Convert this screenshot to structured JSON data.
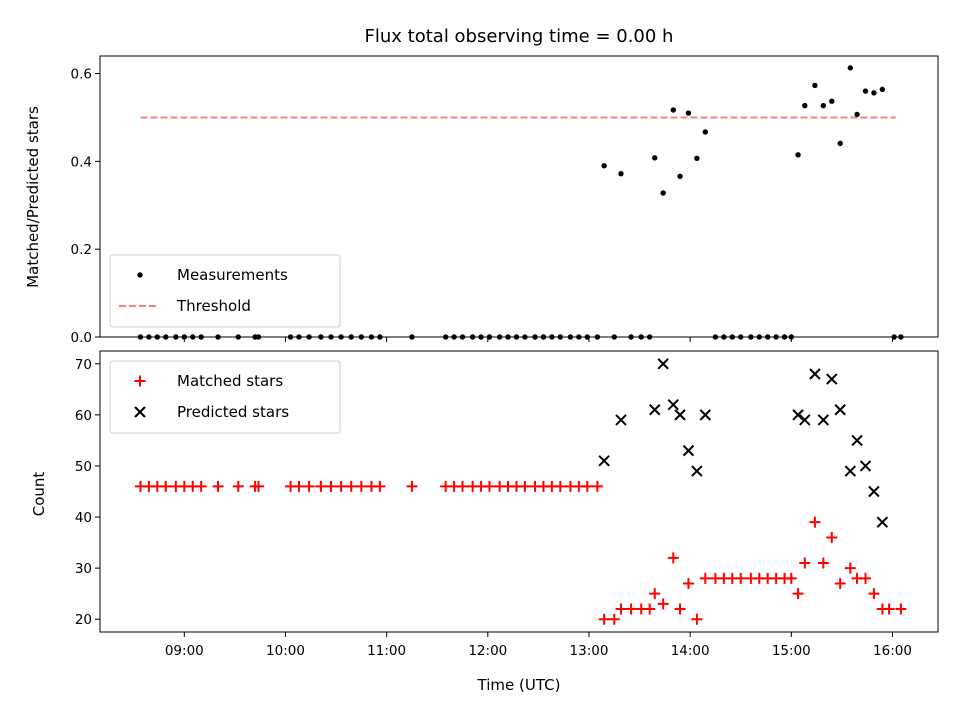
{
  "chart_data": {
    "title": "Flux total observing time = 0.00 h",
    "xlabel": "Time (UTC)",
    "x_ticks": [
      "09:00",
      "10:00",
      "11:00",
      "12:00",
      "13:00",
      "14:00",
      "15:00",
      "16:00"
    ],
    "xlim": [
      "08:10",
      "16:27"
    ],
    "grid": false,
    "panels": [
      {
        "type": "scatter",
        "ylabel": "Matched/Predicted stars",
        "ylim": [
          0,
          0.64
        ],
        "y_ticks": [
          "0.0",
          "0.2",
          "0.4",
          "0.6"
        ],
        "legend_position": "lower-left",
        "threshold": {
          "name": "Threshold",
          "y": 0.5,
          "x_start": "08:34",
          "x_end": "16:02",
          "color": "#ff7f7f",
          "style": "dashed"
        },
        "series": [
          {
            "name": "Measurements",
            "color": "#000000",
            "marker": "dot",
            "points": [
              [
                "08:34",
                0
              ],
              [
                "08:39",
                0
              ],
              [
                "08:44",
                0
              ],
              [
                "08:49",
                0
              ],
              [
                "08:55",
                0
              ],
              [
                "09:00",
                0
              ],
              [
                "09:05",
                0
              ],
              [
                "09:10",
                0
              ],
              [
                "09:20",
                0
              ],
              [
                "09:32",
                0
              ],
              [
                "09:42",
                0
              ],
              [
                "09:44",
                0
              ],
              [
                "10:03",
                0
              ],
              [
                "10:08",
                0
              ],
              [
                "10:14",
                0
              ],
              [
                "10:21",
                0
              ],
              [
                "10:27",
                0
              ],
              [
                "10:33",
                0
              ],
              [
                "10:39",
                0
              ],
              [
                "10:45",
                0
              ],
              [
                "10:51",
                0
              ],
              [
                "10:56",
                0
              ],
              [
                "11:15",
                0
              ],
              [
                "11:35",
                0
              ],
              [
                "11:40",
                0
              ],
              [
                "11:45",
                0
              ],
              [
                "11:51",
                0
              ],
              [
                "11:56",
                0
              ],
              [
                "12:01",
                0
              ],
              [
                "12:07",
                0
              ],
              [
                "12:12",
                0
              ],
              [
                "12:17",
                0
              ],
              [
                "12:22",
                0
              ],
              [
                "12:28",
                0
              ],
              [
                "12:33",
                0
              ],
              [
                "12:38",
                0
              ],
              [
                "12:43",
                0
              ],
              [
                "12:49",
                0
              ],
              [
                "12:54",
                0
              ],
              [
                "12:59",
                0
              ],
              [
                "13:05",
                0
              ],
              [
                "13:09",
                0.39
              ],
              [
                "13:15",
                0
              ],
              [
                "13:19",
                0.372
              ],
              [
                "13:25",
                0
              ],
              [
                "13:31",
                0
              ],
              [
                "13:36",
                0
              ],
              [
                "13:39",
                0.408
              ],
              [
                "13:44",
                0.328
              ],
              [
                "13:50",
                0.517
              ],
              [
                "13:54",
                0.366
              ],
              [
                "13:59",
                0.51
              ],
              [
                "14:04",
                0.407
              ],
              [
                "14:09",
                0.467
              ],
              [
                "14:15",
                0
              ],
              [
                "14:20",
                0
              ],
              [
                "14:25",
                0
              ],
              [
                "14:30",
                0
              ],
              [
                "14:36",
                0
              ],
              [
                "14:41",
                0
              ],
              [
                "14:46",
                0
              ],
              [
                "14:51",
                0
              ],
              [
                "14:56",
                0
              ],
              [
                "15:00",
                0
              ],
              [
                "15:04",
                0.415
              ],
              [
                "15:08",
                0.527
              ],
              [
                "15:14",
                0.573
              ],
              [
                "15:19",
                0.527
              ],
              [
                "15:24",
                0.537
              ],
              [
                "15:29",
                0.441
              ],
              [
                "15:35",
                0.613
              ],
              [
                "15:39",
                0.507
              ],
              [
                "15:44",
                0.56
              ],
              [
                "15:49",
                0.556
              ],
              [
                "15:54",
                0.564
              ],
              [
                "16:01",
                0
              ],
              [
                "16:05",
                0
              ]
            ]
          }
        ]
      },
      {
        "type": "scatter",
        "ylabel": "Count",
        "ylim": [
          17.5,
          72.5
        ],
        "y_ticks": [
          "20",
          "30",
          "40",
          "50",
          "60",
          "70"
        ],
        "legend_position": "upper-left",
        "series": [
          {
            "name": "Matched stars",
            "color": "#ff0000",
            "marker": "plus",
            "points": [
              [
                "08:34",
                46
              ],
              [
                "08:39",
                46
              ],
              [
                "08:44",
                46
              ],
              [
                "08:49",
                46
              ],
              [
                "08:55",
                46
              ],
              [
                "09:00",
                46
              ],
              [
                "09:05",
                46
              ],
              [
                "09:10",
                46
              ],
              [
                "09:20",
                46
              ],
              [
                "09:32",
                46
              ],
              [
                "09:42",
                46
              ],
              [
                "09:44",
                46
              ],
              [
                "10:03",
                46
              ],
              [
                "10:08",
                46
              ],
              [
                "10:14",
                46
              ],
              [
                "10:21",
                46
              ],
              [
                "10:27",
                46
              ],
              [
                "10:33",
                46
              ],
              [
                "10:39",
                46
              ],
              [
                "10:45",
                46
              ],
              [
                "10:51",
                46
              ],
              [
                "10:56",
                46
              ],
              [
                "11:15",
                46
              ],
              [
                "11:35",
                46
              ],
              [
                "11:40",
                46
              ],
              [
                "11:45",
                46
              ],
              [
                "11:51",
                46
              ],
              [
                "11:56",
                46
              ],
              [
                "12:01",
                46
              ],
              [
                "12:07",
                46
              ],
              [
                "12:12",
                46
              ],
              [
                "12:17",
                46
              ],
              [
                "12:22",
                46
              ],
              [
                "12:28",
                46
              ],
              [
                "12:33",
                46
              ],
              [
                "12:38",
                46
              ],
              [
                "12:43",
                46
              ],
              [
                "12:49",
                46
              ],
              [
                "12:54",
                46
              ],
              [
                "12:59",
                46
              ],
              [
                "13:05",
                46
              ],
              [
                "13:09",
                20
              ],
              [
                "13:15",
                20
              ],
              [
                "13:19",
                22
              ],
              [
                "13:25",
                22
              ],
              [
                "13:31",
                22
              ],
              [
                "13:36",
                22
              ],
              [
                "13:39",
                25
              ],
              [
                "13:44",
                23
              ],
              [
                "13:50",
                32
              ],
              [
                "13:54",
                22
              ],
              [
                "13:59",
                27
              ],
              [
                "14:04",
                20
              ],
              [
                "14:09",
                28
              ],
              [
                "14:15",
                28
              ],
              [
                "14:20",
                28
              ],
              [
                "14:25",
                28
              ],
              [
                "14:30",
                28
              ],
              [
                "14:36",
                28
              ],
              [
                "14:41",
                28
              ],
              [
                "14:46",
                28
              ],
              [
                "14:51",
                28
              ],
              [
                "14:56",
                28
              ],
              [
                "15:00",
                28
              ],
              [
                "15:04",
                25
              ],
              [
                "15:08",
                31
              ],
              [
                "15:14",
                39
              ],
              [
                "15:19",
                31
              ],
              [
                "15:24",
                36
              ],
              [
                "15:29",
                27
              ],
              [
                "15:35",
                30
              ],
              [
                "15:39",
                28
              ],
              [
                "15:44",
                28
              ],
              [
                "15:49",
                25
              ],
              [
                "15:54",
                22
              ],
              [
                "15:58",
                22
              ],
              [
                "16:05",
                22
              ]
            ]
          },
          {
            "name": "Predicted stars",
            "color": "#000000",
            "marker": "x",
            "points": [
              [
                "13:09",
                51
              ],
              [
                "13:19",
                59
              ],
              [
                "13:39",
                61
              ],
              [
                "13:44",
                70
              ],
              [
                "13:50",
                62
              ],
              [
                "13:54",
                60
              ],
              [
                "13:59",
                53
              ],
              [
                "14:04",
                49
              ],
              [
                "14:09",
                60
              ],
              [
                "15:04",
                60
              ],
              [
                "15:08",
                59
              ],
              [
                "15:14",
                68
              ],
              [
                "15:19",
                59
              ],
              [
                "15:24",
                67
              ],
              [
                "15:29",
                61
              ],
              [
                "15:35",
                49
              ],
              [
                "15:39",
                55
              ],
              [
                "15:44",
                50
              ],
              [
                "15:49",
                45
              ],
              [
                "15:54",
                39
              ]
            ]
          }
        ]
      }
    ]
  }
}
